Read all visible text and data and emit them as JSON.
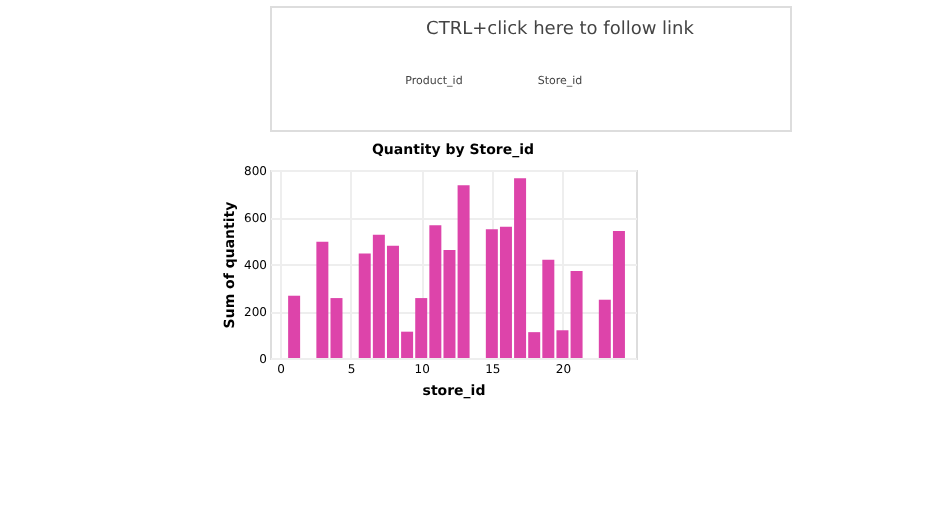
{
  "chart_data": {
    "type": "bar",
    "title": "Quantity by Store_id",
    "xlabel": "store_id",
    "ylabel": "Sum of quantity",
    "x": [
      1,
      3,
      4,
      6,
      7,
      8,
      9,
      10,
      11,
      12,
      13,
      15,
      16,
      17,
      18,
      19,
      20,
      21,
      23,
      24
    ],
    "values": [
      265,
      495,
      255,
      445,
      525,
      478,
      112,
      255,
      565,
      460,
      735,
      548,
      558,
      765,
      110,
      418,
      118,
      370,
      248,
      540
    ],
    "color": "#dd44aa",
    "xlim": [
      0,
      24.5
    ],
    "xticks": [
      0,
      5,
      10,
      15,
      20
    ],
    "ylim": [
      0,
      800
    ],
    "yticks": [
      0,
      200,
      400,
      600,
      800
    ],
    "grid": true,
    "annotations": [
      "CTRL+click here to follow link",
      "Product_id",
      "Store_id"
    ]
  }
}
